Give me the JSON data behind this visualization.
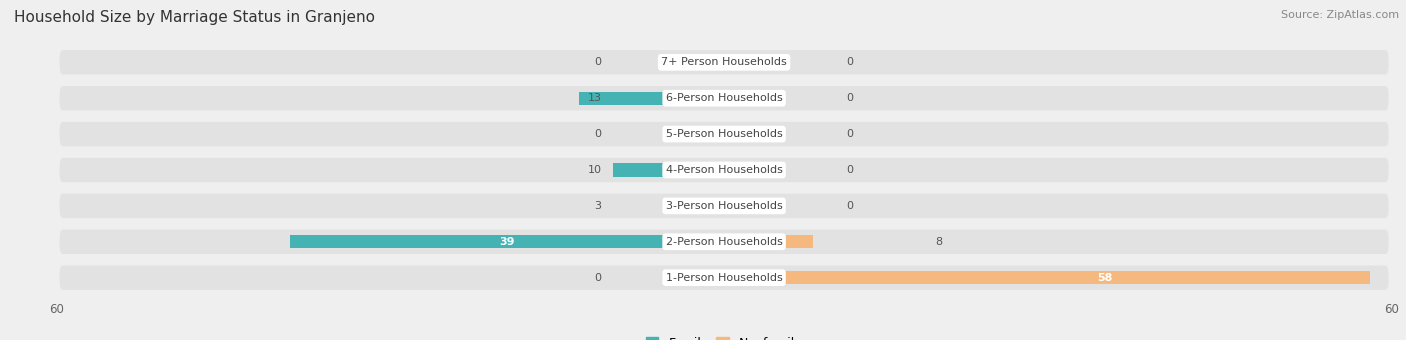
{
  "title": "Household Size by Marriage Status in Granjeno",
  "source": "Source: ZipAtlas.com",
  "categories": [
    "1-Person Households",
    "2-Person Households",
    "3-Person Households",
    "4-Person Households",
    "5-Person Households",
    "6-Person Households",
    "7+ Person Households"
  ],
  "family_values": [
    0,
    39,
    3,
    10,
    0,
    13,
    0
  ],
  "nonfamily_values": [
    58,
    8,
    0,
    0,
    0,
    0,
    0
  ],
  "family_color": "#45B3B3",
  "nonfamily_color": "#F5B97F",
  "axis_max": 60,
  "background_color": "#efefef",
  "row_bg_color": "#e2e2e2",
  "title_fontsize": 11,
  "source_fontsize": 8,
  "bar_label_fontsize": 8,
  "category_fontsize": 8,
  "legend_fontsize": 9,
  "axis_label_fontsize": 8.5
}
